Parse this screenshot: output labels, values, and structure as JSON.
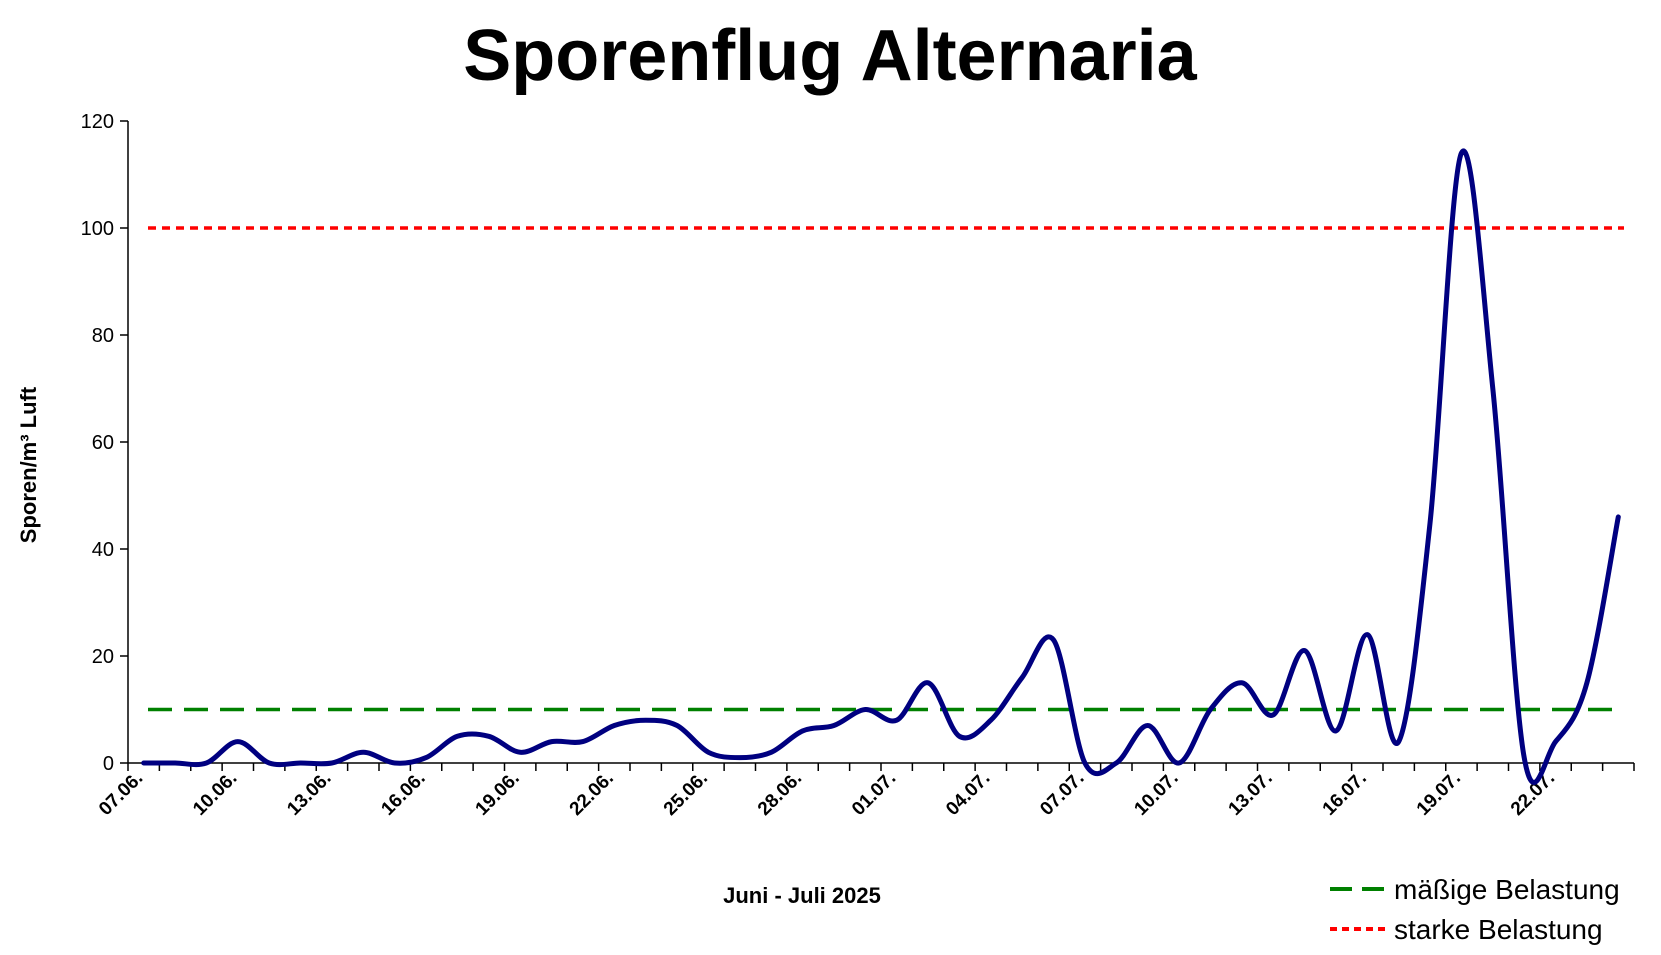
{
  "chart_data": {
    "type": "line",
    "title": "Sporenflug Alternaria",
    "xlabel": "Juni - Juli 2025",
    "ylabel": "Sporen/m³ Luft",
    "ylim": [
      0,
      120
    ],
    "yticks": [
      0,
      20,
      40,
      60,
      80,
      100,
      120
    ],
    "grid": false,
    "legend_position": "bottom-right",
    "x": [
      "07.06.",
      "08.06.",
      "09.06.",
      "10.06.",
      "11.06.",
      "12.06.",
      "13.06.",
      "14.06.",
      "15.06.",
      "16.06.",
      "17.06.",
      "18.06.",
      "19.06.",
      "20.06.",
      "21.06.",
      "22.06.",
      "23.06.",
      "24.06.",
      "25.06.",
      "26.06.",
      "27.06.",
      "28.06.",
      "29.06.",
      "30.06.",
      "01.07.",
      "02.07.",
      "03.07.",
      "04.07.",
      "05.07.",
      "06.07.",
      "07.07.",
      "08.07.",
      "09.07.",
      "10.07.",
      "11.07.",
      "12.07.",
      "13.07.",
      "14.07.",
      "15.07.",
      "16.07.",
      "17.07.",
      "18.07.",
      "19.07.",
      "20.07.",
      "21.07.",
      "22.07.",
      "23.07.",
      "24.07."
    ],
    "x_tick_labels": [
      "07.06.",
      "10.06.",
      "13.06.",
      "16.06.",
      "19.06.",
      "22.06.",
      "25.06.",
      "28.06.",
      "01.07.",
      "04.07.",
      "07.07.",
      "10.07.",
      "13.07.",
      "16.07.",
      "19.07.",
      "22.07."
    ],
    "series": [
      {
        "values": [
          0,
          0,
          0,
          4,
          0,
          0,
          0,
          2,
          0,
          1,
          5,
          5,
          2,
          4,
          4,
          7,
          8,
          7,
          2,
          1,
          2,
          6,
          7,
          10,
          8,
          15,
          5,
          8,
          16,
          23,
          0,
          0,
          7,
          0,
          10,
          15,
          9,
          21,
          6,
          24,
          4,
          45,
          114,
          70,
          1,
          4,
          15,
          46
        ],
        "color": "#000080"
      }
    ],
    "reference_lines": [
      {
        "name": "mäßige Belastung",
        "value": 10,
        "color": "#008000",
        "style": "long-dash"
      },
      {
        "name": "starke Belastung",
        "value": 100,
        "color": "#ff0000",
        "style": "short-dash"
      }
    ]
  }
}
